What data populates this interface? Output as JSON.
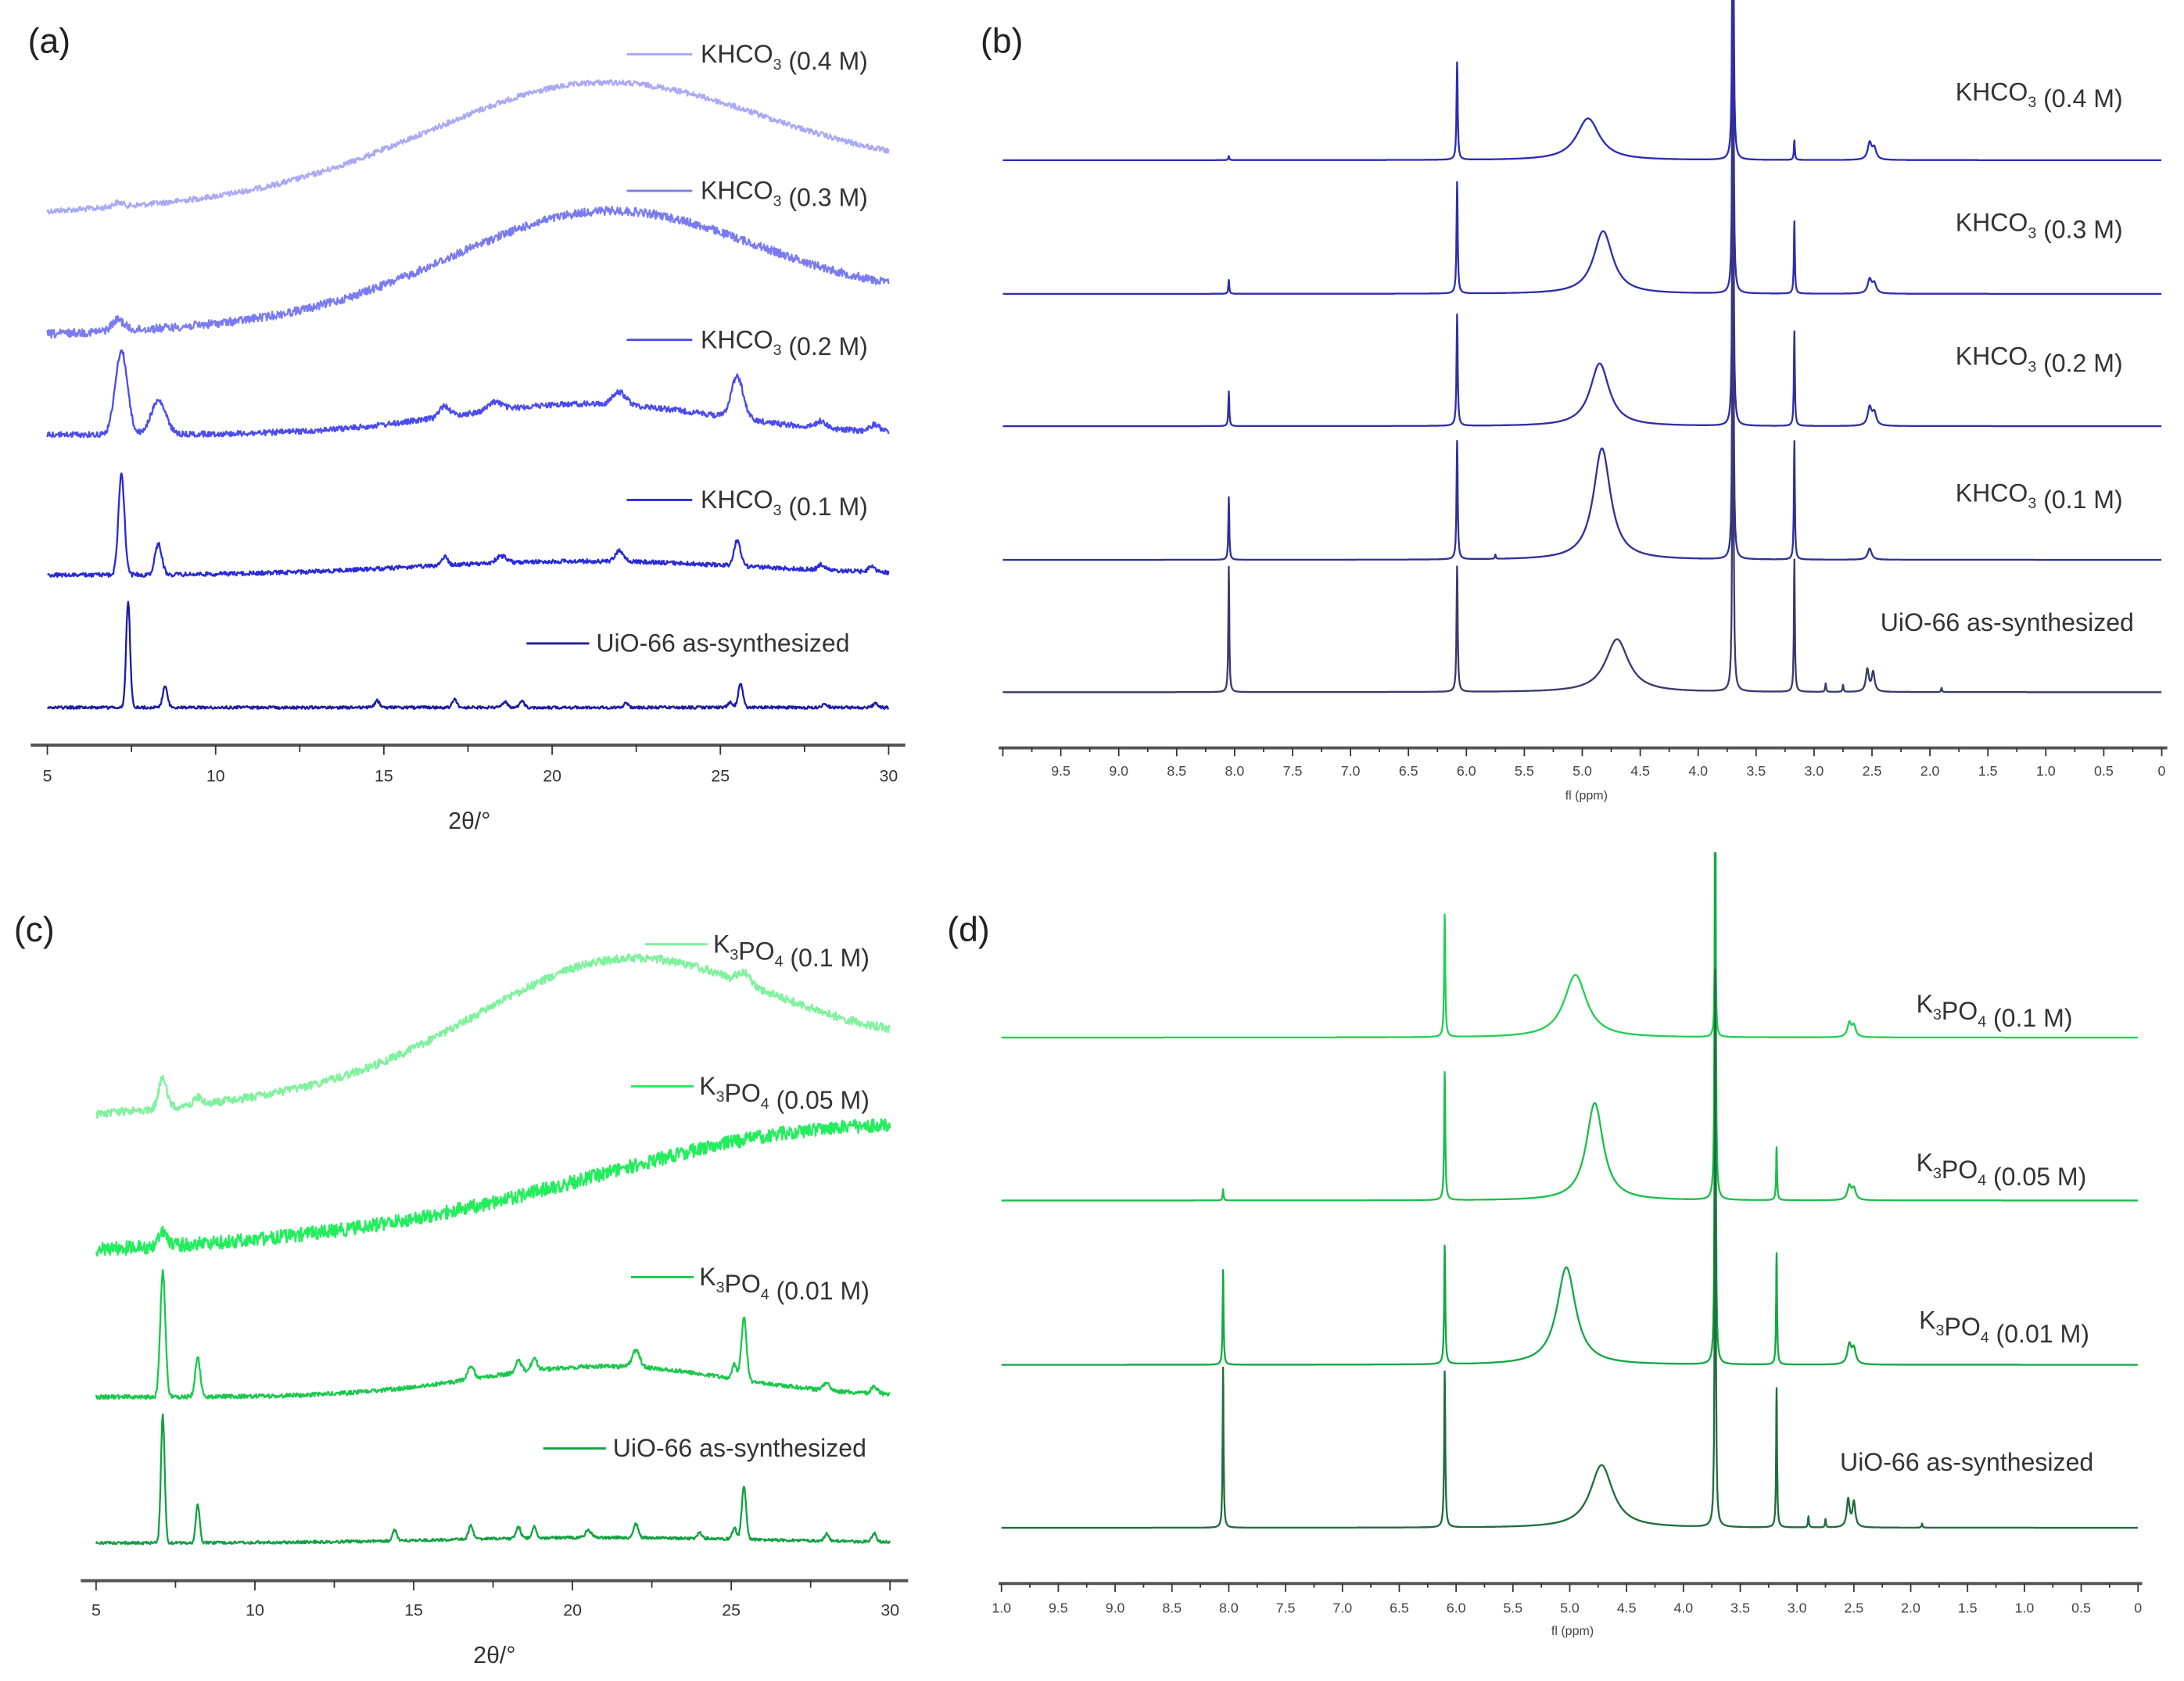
{
  "chart_data": [
    {
      "panel": "(a)",
      "type": "line",
      "xlabel": "2θ/°",
      "xlim": [
        5,
        30
      ],
      "xticks": [
        "5",
        "10",
        "15",
        "20",
        "25",
        "30"
      ],
      "grid": false,
      "legend_placement": "right of each trace",
      "series": [
        {
          "label": {
            "main": "KHCO",
            "sub": "3",
            "rest": " (0.4 M)"
          },
          "color": "#a9a9f6",
          "noise": 2,
          "drift": 27,
          "hump": [
            21.3,
            75,
            5
          ],
          "peaks": [
            [
              7.1,
              3,
              0.15
            ]
          ]
        },
        {
          "label": {
            "main": "KHCO",
            "sub": "3",
            "rest": " (0.3 M)"
          },
          "color": "#7a7af2",
          "noise": 3,
          "drift": 25,
          "hump": [
            21.5,
            72,
            4.5
          ],
          "peaks": [
            [
              7.1,
              8,
              0.18
            ]
          ]
        },
        {
          "label": {
            "main": "KHCO",
            "sub": "3",
            "rest": " (0.2 M)"
          },
          "color": "#4b4bf0",
          "noise": 2,
          "drift": 0,
          "hump": [
            21,
            22,
            4
          ],
          "peaks": [
            [
              7.2,
              60,
              0.18
            ],
            [
              8.3,
              24,
              0.22
            ],
            [
              16.8,
              8,
              0.15
            ],
            [
              18.3,
              6,
              0.2
            ],
            [
              22,
              9,
              0.2
            ],
            [
              25.5,
              30,
              0.18
            ],
            [
              28,
              5,
              0.15
            ],
            [
              29.6,
              5,
              0.15
            ]
          ]
        },
        {
          "label": {
            "main": "KHCO",
            "sub": "3",
            "rest": " (0.1 M)"
          },
          "color": "#2a2ad8",
          "noise": 1.5,
          "drift": 0,
          "hump": [
            21,
            10,
            5
          ],
          "peaks": [
            [
              7.2,
              72,
              0.09
            ],
            [
              8.3,
              22,
              0.1
            ],
            [
              16.8,
              6,
              0.1
            ],
            [
              18.5,
              5,
              0.15
            ],
            [
              22,
              8,
              0.12
            ],
            [
              25.5,
              18,
              0.1
            ],
            [
              28,
              4,
              0.1
            ],
            [
              29.5,
              4,
              0.1
            ]
          ]
        },
        {
          "label": {
            "main": "UiO-66 as-synthesized",
            "sub": "",
            "rest": ""
          },
          "color": "#1c1ca2",
          "noise": 1,
          "drift": 0,
          "hump": [
            21,
            0,
            5
          ],
          "peaks": [
            [
              7.4,
              75,
              0.06
            ],
            [
              8.5,
              15,
              0.07
            ],
            [
              14.8,
              5,
              0.07
            ],
            [
              17.1,
              6,
              0.07
            ],
            [
              18.6,
              4,
              0.07
            ],
            [
              19.1,
              5,
              0.07
            ],
            [
              22.2,
              3,
              0.07
            ],
            [
              25.3,
              4,
              0.07
            ],
            [
              25.6,
              17,
              0.07
            ],
            [
              28.1,
              3,
              0.07
            ],
            [
              29.6,
              3,
              0.07
            ]
          ]
        }
      ]
    },
    {
      "panel": "(b)",
      "type": "line",
      "xlabel": "fl (ppm)",
      "xlim": [
        10,
        0
      ],
      "xticks": [
        "9.5",
        "9.0",
        "8.5",
        "8.0",
        "7.5",
        "7.0",
        "6.5",
        "6.0",
        "5.5",
        "5.0",
        "4.5",
        "4.0",
        "3.5",
        "3.0",
        "2.5",
        "2.0",
        "1.5",
        "1.0",
        "0.5",
        "0"
      ],
      "grid": false,
      "series": [
        {
          "label": {
            "main": "KHCO",
            "sub": "3",
            "rest": " (0.4 M)"
          },
          "color": "#2b2bb8",
          "peaks": [
            [
              8.05,
              3,
              0.005
            ],
            [
              6.08,
              70,
              0.006
            ],
            [
              4.95,
              30,
              0.12
            ],
            [
              3.7,
              400,
              0.005
            ],
            [
              3.17,
              14,
              0.005
            ],
            [
              2.52,
              12,
              0.02
            ],
            [
              2.48,
              8,
              0.02
            ]
          ]
        },
        {
          "label": {
            "main": "KHCO",
            "sub": "3",
            "rest": " (0.3 M)"
          },
          "color": "#2e2eae",
          "peaks": [
            [
              8.05,
              10,
              0.005
            ],
            [
              6.08,
              80,
              0.006
            ],
            [
              4.82,
              45,
              0.1
            ],
            [
              3.7,
              400,
              0.005
            ],
            [
              3.17,
              52,
              0.005
            ],
            [
              2.52,
              10,
              0.02
            ],
            [
              2.48,
              7,
              0.02
            ]
          ]
        },
        {
          "label": {
            "main": "KHCO",
            "sub": "3",
            "rest": " (0.2 M)"
          },
          "color": "#2f2fa4",
          "peaks": [
            [
              8.05,
              25,
              0.005
            ],
            [
              6.08,
              80,
              0.006
            ],
            [
              4.85,
              45,
              0.1
            ],
            [
              3.7,
              400,
              0.005
            ],
            [
              3.17,
              68,
              0.005
            ],
            [
              2.52,
              13,
              0.02
            ],
            [
              2.48,
              9,
              0.02
            ]
          ]
        },
        {
          "label": {
            "main": "KHCO",
            "sub": "3",
            "rest": " (0.1 M)"
          },
          "color": "#30309a",
          "peaks": [
            [
              8.05,
              45,
              0.005
            ],
            [
              6.08,
              85,
              0.006
            ],
            [
              5.75,
              3,
              0.005
            ],
            [
              4.83,
              80,
              0.09
            ],
            [
              3.7,
              400,
              0.005
            ],
            [
              3.17,
              85,
              0.005
            ],
            [
              2.52,
              8,
              0.02
            ]
          ]
        },
        {
          "label": {
            "main": "UiO-66 as-synthesized",
            "sub": "",
            "rest": ""
          },
          "color": "#3a3a6e",
          "peaks": [
            [
              8.05,
              90,
              0.005
            ],
            [
              6.08,
              90,
              0.006
            ],
            [
              4.7,
              38,
              0.12
            ],
            [
              3.7,
              400,
              0.005
            ],
            [
              3.17,
              95,
              0.005
            ],
            [
              2.9,
              6,
              0.005
            ],
            [
              2.75,
              5,
              0.005
            ],
            [
              2.54,
              16,
              0.015
            ],
            [
              2.49,
              14,
              0.015
            ],
            [
              1.9,
              3,
              0.005
            ]
          ]
        }
      ]
    },
    {
      "panel": "(c)",
      "type": "line",
      "xlabel": "2θ/°",
      "xlim": [
        5,
        30
      ],
      "xticks": [
        "5",
        "10",
        "15",
        "20",
        "25",
        "30"
      ],
      "grid": false,
      "series": [
        {
          "label": {
            "main": "K",
            "sub": "3",
            "rest": "PO",
            "sub2": "4",
            "rest2": "  (0.1 M)"
          },
          "color": "#7ef29c",
          "noise": 3,
          "drift": 48,
          "hump": [
            21.5,
            80,
            4.5
          ],
          "peaks": [
            [
              7.1,
              22,
              0.12
            ],
            [
              8.2,
              5,
              0.12
            ],
            [
              25.4,
              8,
              0.2
            ]
          ]
        },
        {
          "label": {
            "main": "K",
            "sub": "3",
            "rest": "PO",
            "sub2": "4",
            "rest2": "  (0.05 M)"
          },
          "color": "#22ee5c",
          "noise": 5,
          "drift": 20,
          "hump": [
            29,
            70,
            8
          ],
          "peaks": [
            [
              7.1,
              10,
              0.15
            ]
          ]
        },
        {
          "label": {
            "main": "K",
            "sub": "3",
            "rest": "PO",
            "sub2": "4",
            "rest2": "  (0.01 M)"
          },
          "color": "#1ac84c",
          "noise": 1.5,
          "drift": 0,
          "hump": [
            21,
            22,
            4
          ],
          "peaks": [
            [
              7.1,
              90,
              0.08
            ],
            [
              8.2,
              28,
              0.08
            ],
            [
              16.8,
              10,
              0.1
            ],
            [
              18.3,
              8,
              0.1
            ],
            [
              18.8,
              8,
              0.1
            ],
            [
              22,
              12,
              0.12
            ],
            [
              25.1,
              10,
              0.08
            ],
            [
              25.4,
              45,
              0.08
            ],
            [
              28,
              5,
              0.1
            ],
            [
              29.5,
              5,
              0.1
            ]
          ]
        },
        {
          "label": {
            "main": "UiO-66 as-synthesized",
            "sub": "",
            "rest": ""
          },
          "color": "#12a242",
          "noise": 1,
          "drift": 0,
          "hump": [
            21,
            4,
            5
          ],
          "peaks": [
            [
              7.1,
              92,
              0.06
            ],
            [
              8.2,
              28,
              0.06
            ],
            [
              14.4,
              8,
              0.07
            ],
            [
              16.8,
              10,
              0.07
            ],
            [
              18.3,
              8,
              0.07
            ],
            [
              18.8,
              8,
              0.07
            ],
            [
              20.5,
              5,
              0.1
            ],
            [
              22,
              10,
              0.07
            ],
            [
              24,
              4,
              0.07
            ],
            [
              25.1,
              8,
              0.07
            ],
            [
              25.4,
              38,
              0.07
            ],
            [
              28,
              5,
              0.07
            ],
            [
              29.5,
              6,
              0.07
            ]
          ]
        }
      ]
    },
    {
      "panel": "(d)",
      "type": "line",
      "xlabel": "fl (ppm)",
      "xlim": [
        10,
        0
      ],
      "xticks": [
        "1.0",
        "9.5",
        "9.0",
        "8.5",
        "8.0",
        "7.5",
        "7.0",
        "6.5",
        "6.0",
        "5.5",
        "5.0",
        "4.5",
        "4.0",
        "3.5",
        "3.0",
        "2.5",
        "2.0",
        "1.5",
        "1.0",
        "0.5",
        "0"
      ],
      "grid": false,
      "series": [
        {
          "label": {
            "main": "K",
            "sub": "3",
            "rest": "PO",
            "sub2": "4",
            "rest2": " (0.1 M)"
          },
          "color": "#22d052",
          "peaks": [
            [
              6.1,
              88,
              0.006
            ],
            [
              4.95,
              45,
              0.12
            ],
            [
              3.72,
              135,
              0.005
            ],
            [
              2.54,
              10,
              0.02
            ],
            [
              2.5,
              8,
              0.02
            ]
          ]
        },
        {
          "label": {
            "main": "K",
            "sub": "3",
            "rest": "PO",
            "sub2": "4",
            "rest2": " (0.05 M)"
          },
          "color": "#1abf4a",
          "peaks": [
            [
              8.05,
              8,
              0.005
            ],
            [
              6.1,
              92,
              0.006
            ],
            [
              4.78,
              70,
              0.09
            ],
            [
              3.72,
              400,
              0.005
            ],
            [
              3.18,
              38,
              0.005
            ],
            [
              2.54,
              10,
              0.02
            ],
            [
              2.5,
              8,
              0.02
            ]
          ]
        },
        {
          "label": {
            "main": "K",
            "sub": "3",
            "rest": "PO",
            "sub2": "4",
            "rest2": " (0.01 M)"
          },
          "color": "#12a844",
          "peaks": [
            [
              8.05,
              68,
              0.005
            ],
            [
              6.1,
              85,
              0.006
            ],
            [
              5.03,
              70,
              0.1
            ],
            [
              3.72,
              400,
              0.005
            ],
            [
              3.18,
              80,
              0.005
            ],
            [
              2.54,
              14,
              0.02
            ],
            [
              2.5,
              11,
              0.02
            ]
          ]
        },
        {
          "label": {
            "main": "UiO-66 as-synthesized",
            "sub": "",
            "rest": ""
          },
          "color": "#1f6e3c",
          "peaks": [
            [
              8.05,
              115,
              0.005
            ],
            [
              6.1,
              112,
              0.006
            ],
            [
              4.72,
              45,
              0.12
            ],
            [
              3.72,
              400,
              0.005
            ],
            [
              3.18,
              100,
              0.005
            ],
            [
              2.9,
              8,
              0.005
            ],
            [
              2.75,
              6,
              0.005
            ],
            [
              2.55,
              20,
              0.015
            ],
            [
              2.5,
              18,
              0.015
            ],
            [
              1.9,
              3,
              0.005
            ]
          ]
        }
      ]
    }
  ]
}
